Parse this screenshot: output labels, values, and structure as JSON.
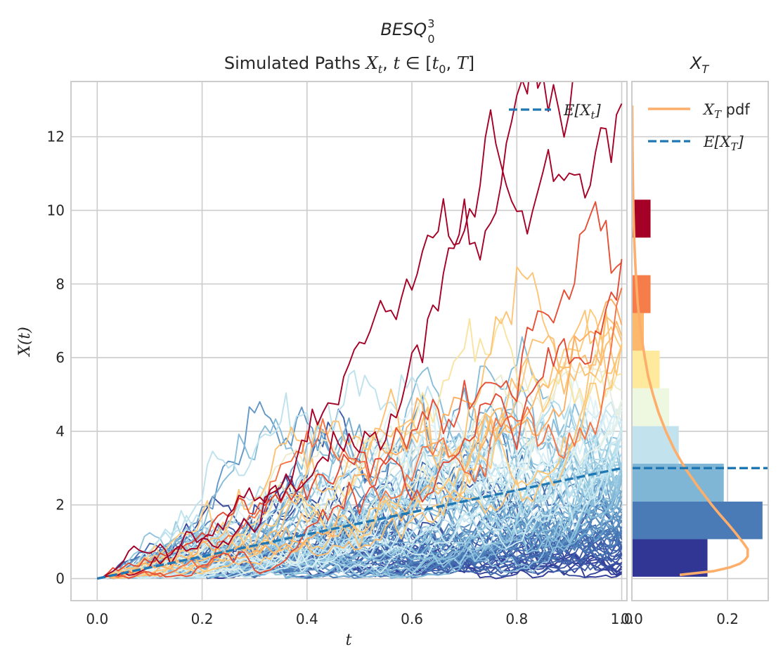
{
  "figure": {
    "suptitle": "BESQ",
    "suptitle_sup": "3",
    "suptitle_sub": "0"
  },
  "chart_data": [
    {
      "type": "line",
      "title_parts": {
        "prefix": "Simulated Paths ",
        "X": "X",
        "sub_t": "t",
        "comma": ", ",
        "t": "t",
        "in": " ∈ [",
        "t0": "t",
        "sub_0": "0",
        "sep": ", ",
        "T": "T",
        "close": "]"
      },
      "xlabel": "t",
      "ylabel": "X(t)",
      "xlim": [
        -0.05,
        1.01
      ],
      "ylim": [
        -0.6,
        13.5
      ],
      "xticks": [
        "0.0",
        "0.2",
        "0.4",
        "0.6",
        "0.8",
        "1.0"
      ],
      "xtick_values": [
        0.0,
        0.2,
        0.4,
        0.6,
        0.8,
        1.0
      ],
      "yticks": [
        "0",
        "2",
        "4",
        "6",
        "8",
        "10",
        "12"
      ],
      "ytick_values": [
        0,
        2,
        4,
        6,
        8,
        10,
        12
      ],
      "grid": true,
      "legend": {
        "position": "top-right",
        "entries": [
          {
            "label_main": "E[X",
            "label_sub": "t",
            "label_end": "]",
            "style": "dashed",
            "color": "#1f77b4"
          }
        ]
      },
      "colormap": "RdYlBu_r",
      "n_paths": 100,
      "time_steps": 100,
      "mean_line": {
        "x": [
          0.0,
          1.0
        ],
        "y": [
          0.0,
          3.0
        ],
        "color": "#1f77b4"
      },
      "terminal_value_range": [
        0.05,
        10.3
      ]
    },
    {
      "type": "bar",
      "orientation": "horizontal",
      "title": "X",
      "title_sub": "T",
      "xlim": [
        0.0,
        0.285
      ],
      "ylim": [
        -0.6,
        13.5
      ],
      "xticks": [
        "0.0",
        "0.2"
      ],
      "xtick_values": [
        0.0,
        0.2
      ],
      "grid": true,
      "bins": [
        {
          "y0": 0.05,
          "y1": 1.07,
          "density": 0.158,
          "color": "#313695"
        },
        {
          "y0": 1.07,
          "y1": 2.09,
          "density": 0.273,
          "color": "#4a7bb7"
        },
        {
          "y0": 2.09,
          "y1": 3.12,
          "density": 0.192,
          "color": "#7fb6d6"
        },
        {
          "y0": 3.12,
          "y1": 4.14,
          "density": 0.098,
          "color": "#c2e3ee"
        },
        {
          "y0": 4.14,
          "y1": 5.17,
          "density": 0.078,
          "color": "#eef7df"
        },
        {
          "y0": 5.17,
          "y1": 6.19,
          "density": 0.058,
          "color": "#fee99d"
        },
        {
          "y0": 6.19,
          "y1": 7.21,
          "density": 0.025,
          "color": "#fdb96b"
        },
        {
          "y0": 7.21,
          "y1": 8.24,
          "density": 0.039,
          "color": "#f67d4a"
        },
        {
          "y0": 8.24,
          "y1": 9.26,
          "density": 0.0,
          "color": "#d62f27"
        },
        {
          "y0": 9.26,
          "y1": 10.29,
          "density": 0.039,
          "color": "#a50026"
        }
      ],
      "pdf": {
        "color": "#fdae6b",
        "y": [
          0.1,
          0.2,
          0.3,
          0.4,
          0.5,
          0.6,
          0.8,
          1.0,
          1.25,
          1.5,
          1.75,
          2.0,
          2.5,
          3.0,
          3.5,
          4.0,
          4.5,
          5.0,
          5.5,
          6.0,
          6.5,
          7.0,
          7.5,
          8.0,
          8.5,
          9.0,
          9.5,
          10.0,
          10.5,
          11.0,
          11.5,
          12.0,
          12.5,
          12.85
        ],
        "density": [
          0.1,
          0.17,
          0.204,
          0.225,
          0.236,
          0.242,
          0.242,
          0.231,
          0.216,
          0.2,
          0.183,
          0.167,
          0.138,
          0.111,
          0.089,
          0.071,
          0.056,
          0.044,
          0.034,
          0.027,
          0.021,
          0.016,
          0.012,
          0.0095,
          0.0073,
          0.0056,
          0.0043,
          0.0033,
          0.0025,
          0.0019,
          0.0015,
          0.0011,
          0.0008,
          0.0006
        ]
      },
      "mean_line": {
        "value": 3.0,
        "color": "#1f77b4"
      },
      "legend": {
        "position": "top",
        "entries": [
          {
            "label_main": "X",
            "label_sub": "T",
            "label_end": " pdf",
            "style": "solid",
            "color": "#fdae6b"
          },
          {
            "label_main": "E[X",
            "label_sub": "T",
            "label_end": "]",
            "style": "dashed",
            "color": "#1f77b4"
          }
        ]
      }
    }
  ]
}
